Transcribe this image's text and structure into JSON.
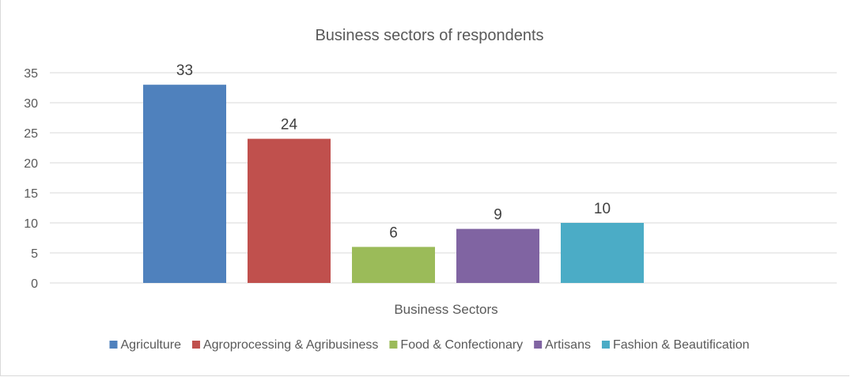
{
  "chart_data": {
    "type": "bar",
    "title": "Business sectors of respondents",
    "xlabel": "Business Sectors",
    "ylabel": "",
    "ylim": [
      0,
      35
    ],
    "yticks": [
      0,
      5,
      10,
      15,
      20,
      25,
      30,
      35
    ],
    "grid": true,
    "legend_position": "bottom",
    "series": [
      {
        "name": "Agriculture",
        "values": [
          33
        ],
        "color": "#4F81BD"
      },
      {
        "name": "Agroprocessing & Agribusiness",
        "values": [
          24
        ],
        "color": "#C0504D"
      },
      {
        "name": "Food & Confectionary",
        "values": [
          6
        ],
        "color": "#9BBB59"
      },
      {
        "name": "Artisans",
        "values": [
          9
        ],
        "color": "#8064A2"
      },
      {
        "name": "Fashion & Beautification",
        "values": [
          10
        ],
        "color": "#4BACC6"
      }
    ]
  }
}
